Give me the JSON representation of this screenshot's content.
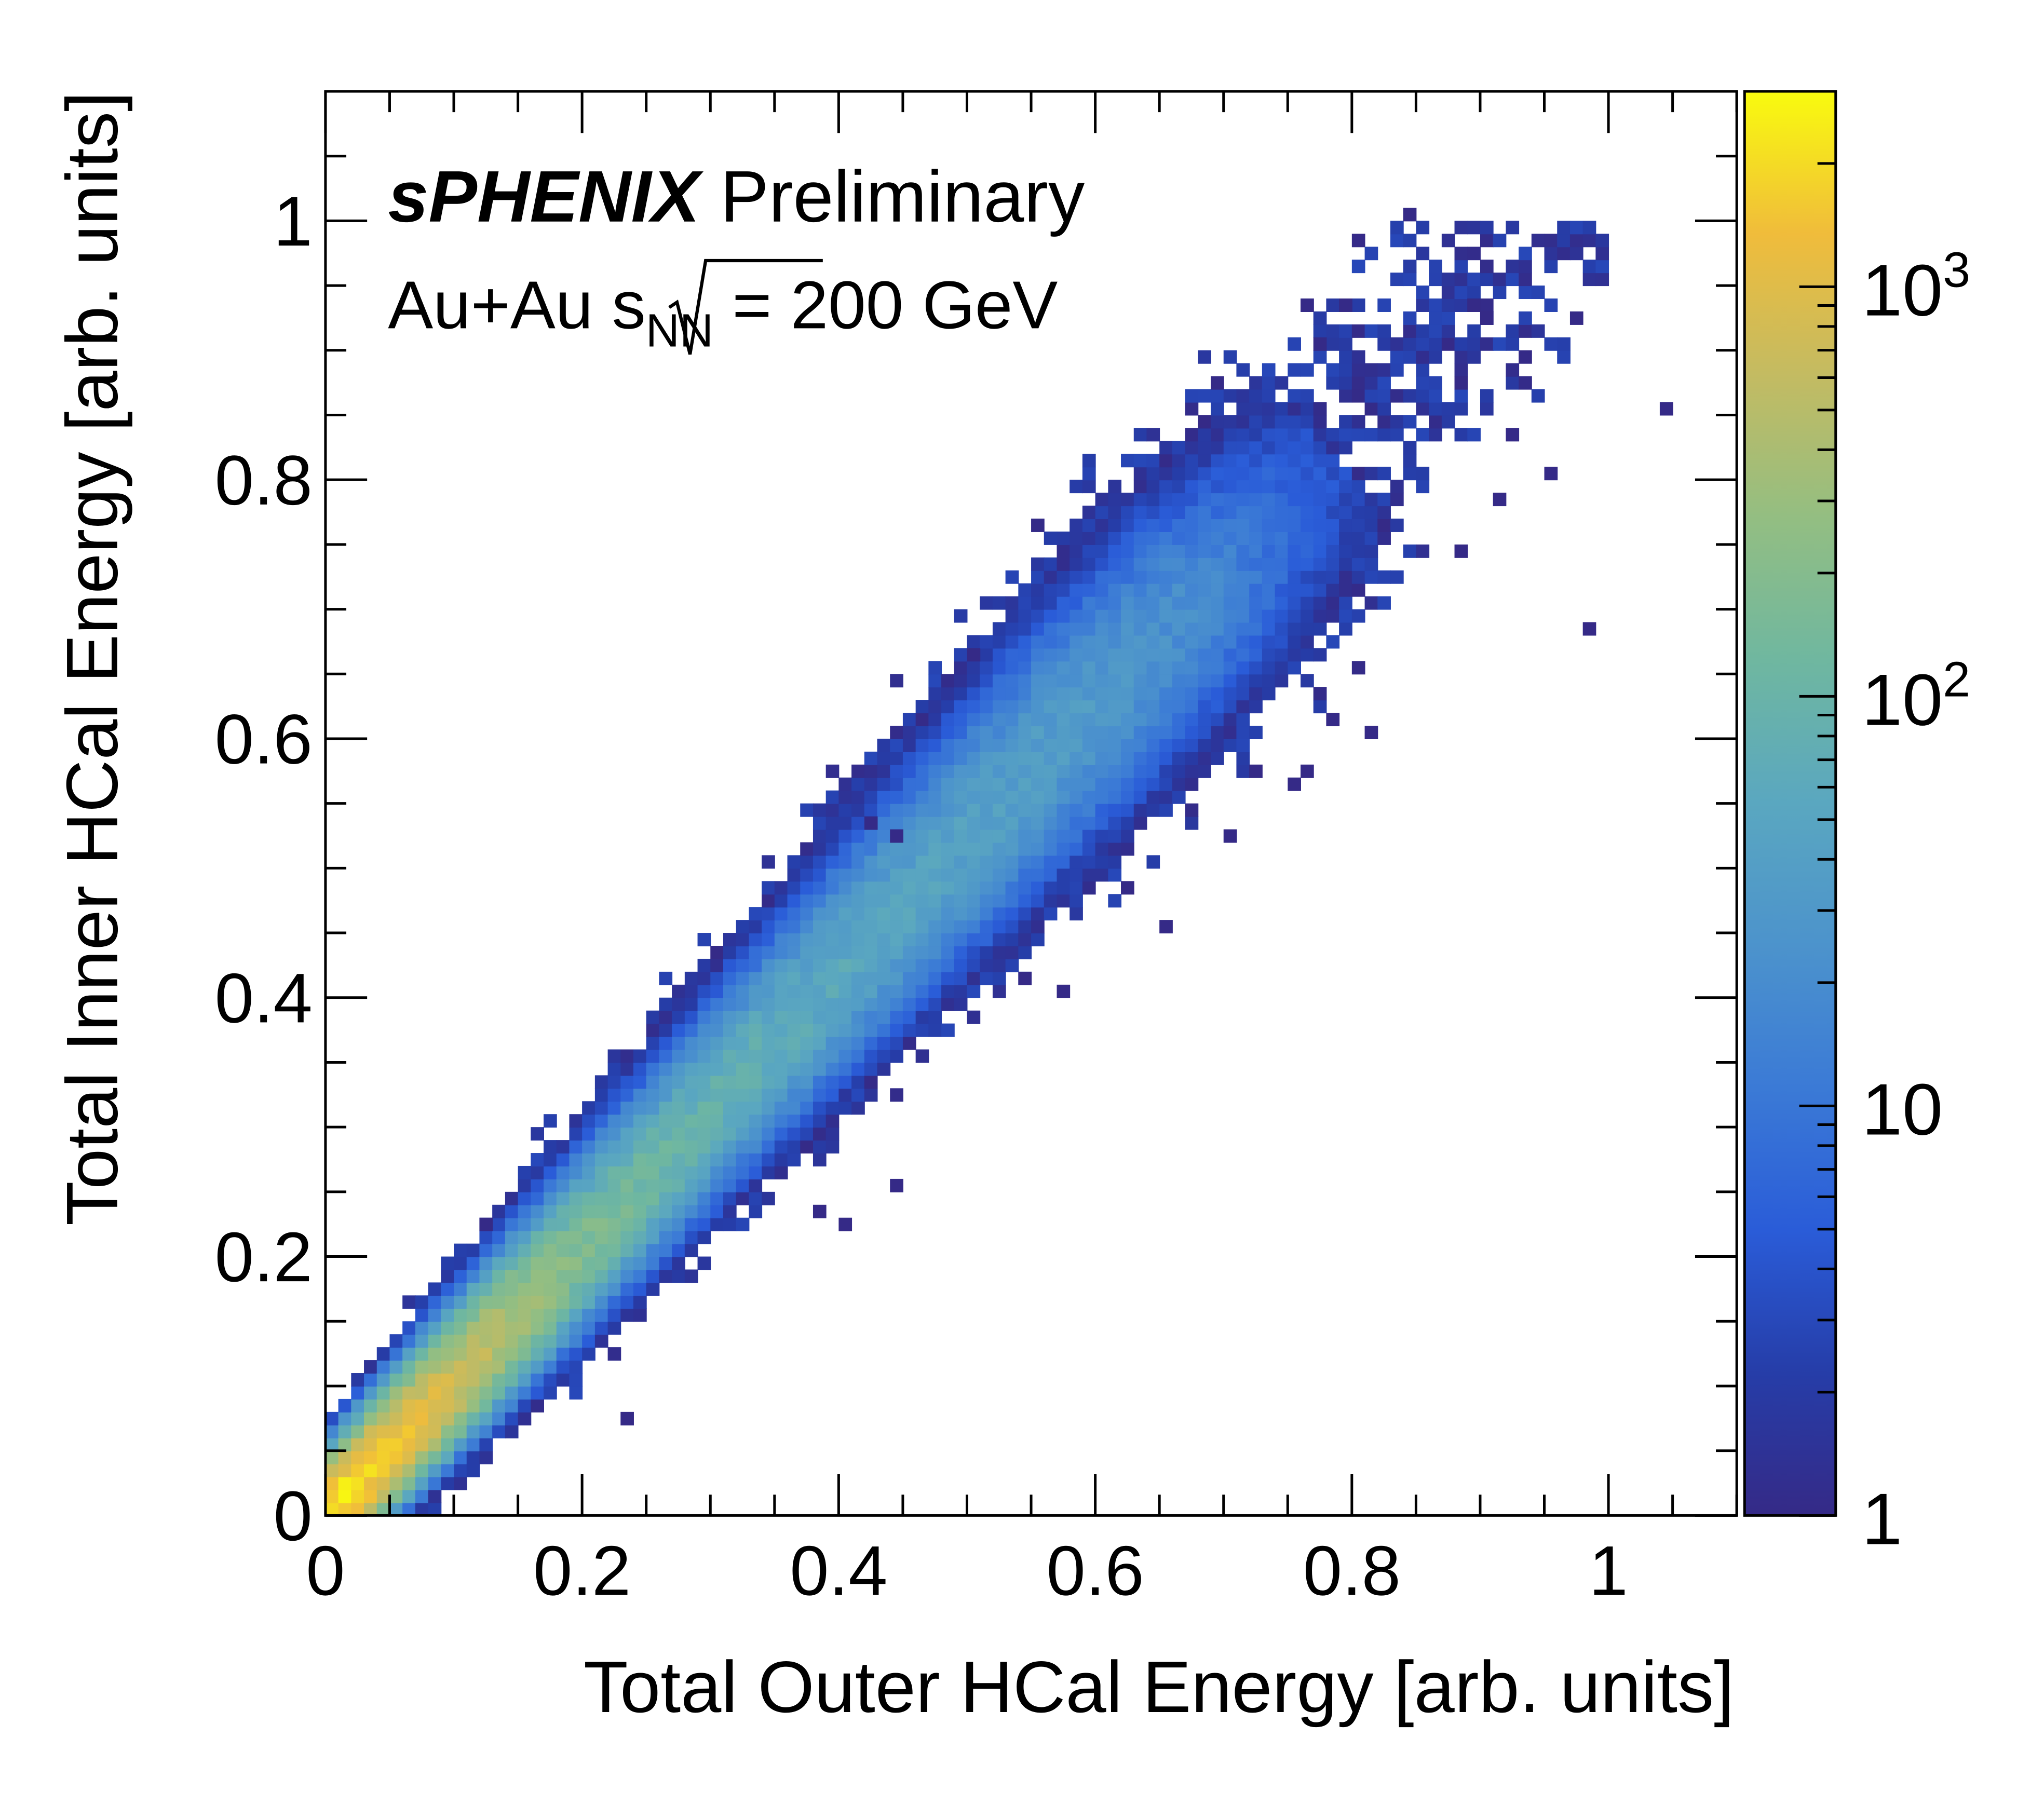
{
  "chart_data": {
    "type": "heatmap",
    "title": "",
    "xlabel": "Total Outer HCal Energy [arb. units]",
    "ylabel": "Total Inner HCal Energy [arb. units]",
    "xlim": [
      0,
      1.1
    ],
    "ylim": [
      0,
      1.1
    ],
    "x_ticks": [
      "0",
      "0.2",
      "0.4",
      "0.6",
      "0.8",
      "1"
    ],
    "y_ticks": [
      "0",
      "0.2",
      "0.4",
      "0.6",
      "0.8",
      "1"
    ],
    "bin_width": 0.01,
    "z_scale": "log",
    "z_range": [
      1,
      3000
    ],
    "colorbar_ticks": [
      {
        "value": 1,
        "base": "1",
        "exp": ""
      },
      {
        "value": 10,
        "base": "10",
        "exp": ""
      },
      {
        "value": 100,
        "base": "10",
        "exp": "2"
      },
      {
        "value": 1000,
        "base": "10",
        "exp": "3"
      }
    ],
    "ridge": {
      "slope": 1.05,
      "count_profile": [
        [
          0.0,
          3000
        ],
        [
          0.1,
          800
        ],
        [
          0.2,
          200
        ],
        [
          0.3,
          90
        ],
        [
          0.4,
          60
        ],
        [
          0.5,
          45
        ],
        [
          0.6,
          35
        ],
        [
          0.7,
          20
        ],
        [
          0.8,
          4
        ]
      ]
    },
    "isolated_bins": [
      [
        0.84,
        1.0
      ],
      [
        1.04,
        0.85
      ],
      [
        0.98,
        0.68
      ],
      [
        0.97,
        0.92
      ],
      [
        0.95,
        0.8
      ],
      [
        0.93,
        0.89
      ],
      [
        0.9,
        0.92
      ],
      [
        0.89,
        0.93
      ],
      [
        0.88,
        0.74
      ],
      [
        0.91,
        0.78
      ],
      [
        0.92,
        0.83
      ],
      [
        0.88,
        0.87
      ],
      [
        0.81,
        0.6
      ],
      [
        0.76,
        0.57
      ],
      [
        0.75,
        0.56
      ],
      [
        0.7,
        0.52
      ],
      [
        0.65,
        0.45
      ],
      [
        0.62,
        0.48
      ],
      [
        0.54,
        0.41
      ],
      [
        0.44,
        0.25
      ],
      [
        0.4,
        0.22
      ],
      [
        0.38,
        0.23
      ],
      [
        0.23,
        0.07
      ],
      [
        0.12,
        0.22
      ],
      [
        0.76,
        0.93
      ],
      [
        0.79,
        0.93
      ],
      [
        0.77,
        0.9
      ],
      [
        0.69,
        0.87
      ],
      [
        0.78,
        0.61
      ],
      [
        0.44,
        0.52
      ],
      [
        0.42,
        0.53
      ],
      [
        0.5,
        0.66
      ],
      [
        0.57,
        0.4
      ]
    ]
  },
  "annotations": {
    "experiment": "sPHENIX",
    "status": " Preliminary",
    "system": "Au+Au ",
    "energy_symbol": "s",
    "energy_subscript": "NN",
    "energy_value": " = 200 GeV"
  }
}
